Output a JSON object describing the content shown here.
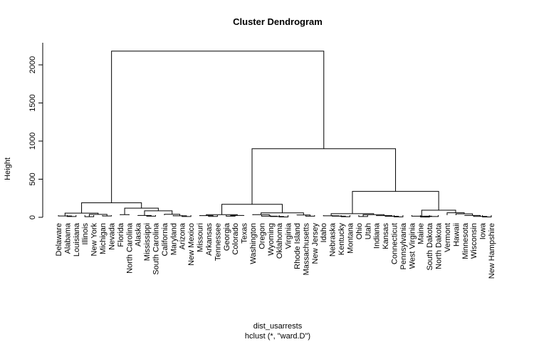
{
  "chart_data": {
    "type": "dendrogram",
    "title": "Cluster Dendrogram",
    "ylabel": "Height",
    "xlabel": "dist_usarrests",
    "subtitle": "hclust (*, \"ward.D\")",
    "ylim": [
      0,
      2290
    ],
    "yticks": [
      0,
      500,
      1000,
      1500,
      2000
    ],
    "color": "#000000",
    "tree": {
      "height": 2180,
      "children": [
        {
          "height": 190,
          "children": [
            {
              "height": 55,
              "children": [
                {
                  "height": 18,
                  "children": [
                    "Delaware",
                    {
                      "height": 10,
                      "children": [
                        "Alabama",
                        "Louisiana"
                      ]
                    }
                  ]
                },
                {
                  "height": 38,
                  "children": [
                    {
                      "height": 8,
                      "children": [
                        "Illinois",
                        "New York"
                      ]
                    },
                    {
                      "height": 17,
                      "children": [
                        "Michigan",
                        "Nevada"
                      ]
                    }
                  ]
                }
              ]
            },
            {
              "height": 120,
              "children": [
                {
                  "height": 35,
                  "children": [
                    "Florida",
                    "North Carolina"
                  ]
                },
                {
                  "height": 85,
                  "children": [
                    {
                      "height": 25,
                      "children": [
                        "Alaska",
                        {
                          "height": 15,
                          "children": [
                            "Mississippi",
                            "South Carolina"
                          ]
                        }
                      ]
                    },
                    {
                      "height": 40,
                      "children": [
                        "California",
                        {
                          "height": 20,
                          "children": [
                            "Maryland",
                            {
                              "height": 10,
                              "children": [
                                "Arizona",
                                "New Mexico"
                              ]
                            }
                          ]
                        }
                      ]
                    }
                  ]
                }
              ]
            }
          ]
        },
        {
          "height": 900,
          "children": [
            {
              "height": 170,
              "children": [
                {
                  "height": 35,
                  "children": [
                    {
                      "height": 22,
                      "children": [
                        "Missouri",
                        {
                          "height": 12,
                          "children": [
                            "Arkansas",
                            "Tennessee"
                          ]
                        }
                      ]
                    },
                    {
                      "height": 25,
                      "children": [
                        {
                          "height": 15,
                          "children": [
                            "Georgia",
                            "Colorado"
                          ]
                        },
                        "Texas"
                      ]
                    }
                  ]
                },
                {
                  "height": 58,
                  "children": [
                    {
                      "height": 35,
                      "children": [
                        "Washington",
                        {
                          "height": 15,
                          "children": [
                            "Oregon",
                            {
                              "height": 10,
                              "children": [
                                "Wyoming",
                                {
                                  "height": 5,
                                  "children": [
                                    "Oklahoma",
                                    "Virginia"
                                  ]
                                }
                              ]
                            }
                          ]
                        }
                      ]
                    },
                    {
                      "height": 30,
                      "children": [
                        "Rhode Island",
                        {
                          "height": 15,
                          "children": [
                            "Massachusetts",
                            "New Jersey"
                          ]
                        }
                      ]
                    }
                  ]
                }
              ]
            },
            {
              "height": 340,
              "children": [
                {
                  "height": 48,
                  "children": [
                    {
                      "height": 20,
                      "children": [
                        "Idaho",
                        {
                          "height": 15,
                          "children": [
                            "Nebraska",
                            {
                              "height": 8,
                              "children": [
                                "Kentucky",
                                "Montana"
                              ]
                            }
                          ]
                        }
                      ]
                    },
                    {
                      "height": 35,
                      "children": [
                        {
                          "height": 10,
                          "children": [
                            "Ohio",
                            "Utah"
                          ]
                        },
                        {
                          "height": 22,
                          "children": [
                            "Indiana",
                            {
                              "height": 14,
                              "children": [
                                "Kansas",
                                {
                                  "height": 6,
                                  "children": [
                                    "Connecticut",
                                    "Pennsylvania"
                                  ]
                                }
                              ]
                            }
                          ]
                        }
                      ]
                    }
                  ]
                },
                {
                  "height": 93,
                  "children": [
                    {
                      "height": 15,
                      "children": [
                        "West Virginia",
                        {
                          "height": 10,
                          "children": [
                            {
                              "height": 4,
                              "children": [
                                "Maine",
                                "South Dakota"
                              ]
                            },
                            "North Dakota"
                          ]
                        }
                      ]
                    },
                    {
                      "height": 60,
                      "children": [
                        "Vermont",
                        {
                          "height": 45,
                          "children": [
                            "Hawaii",
                            {
                              "height": 25,
                              "children": [
                                "Minnesota",
                                {
                                  "height": 12,
                                  "children": [
                                    "Wisconsin",
                                    {
                                      "height": 5,
                                      "children": [
                                        "Iowa",
                                        "New Hampshire"
                                      ]
                                    }
                                  ]
                                }
                              ]
                            }
                          ]
                        }
                      ]
                    }
                  ]
                }
              ]
            }
          ]
        }
      ]
    }
  }
}
